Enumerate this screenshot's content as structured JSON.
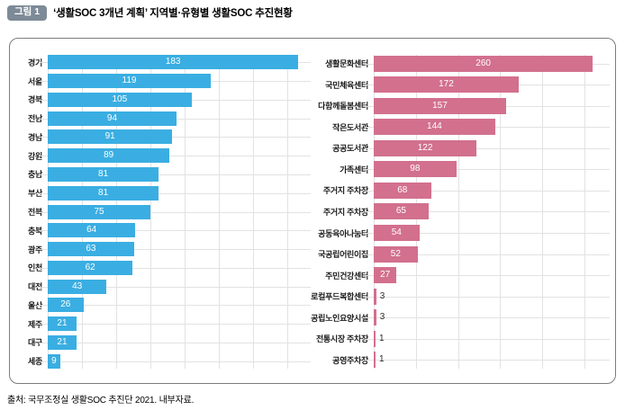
{
  "figure": {
    "badge": "그림 1",
    "title": "‘생활SOC 3개년 계획’ 지역별·유형별 생활SOC 추진현황",
    "source": "출처: 국무조정실 생활SOC 추진단 2021. 내부자료."
  },
  "colors": {
    "badge_bg": "#7d8a97",
    "left_bar": "#3aaee2",
    "right_bar": "#d2708e",
    "gridline": "#e2e2e2",
    "box_border": "#7d7d7d",
    "value_text_inside": "#ffffff",
    "value_text_outside": "#2a2a2a"
  },
  "chart_data": [
    {
      "type": "bar",
      "orientation": "horizontal",
      "name": "region-chart",
      "title": "",
      "xlabel": "",
      "ylabel": "",
      "legend": null,
      "grid": true,
      "categories": [
        "경기",
        "서울",
        "경북",
        "전남",
        "경남",
        "강원",
        "충남",
        "부산",
        "전북",
        "충북",
        "광주",
        "인천",
        "대전",
        "울산",
        "제주",
        "대구",
        "세종"
      ],
      "values": [
        183,
        119,
        105,
        94,
        91,
        89,
        81,
        81,
        75,
        64,
        63,
        62,
        43,
        26,
        21,
        21,
        9
      ],
      "xlim": [
        0,
        192
      ],
      "grid_step": 25,
      "bar_color": "#3aaee2",
      "label_width": 40
    },
    {
      "type": "bar",
      "orientation": "horizontal",
      "name": "facility-type-chart",
      "title": "",
      "xlabel": "",
      "ylabel": "",
      "legend": null,
      "grid": true,
      "categories": [
        "생활문화센터",
        "국민체육센터",
        "다함께돌봄센터",
        "작은도서관",
        "공공도서관",
        "가족센터",
        "주거지 주차장",
        "주거지 주차장",
        "공동육아나눔터",
        "국공립어린이집",
        "주민건강센터",
        "로컬푸드복합센터",
        "공립노인요양시설",
        "전통시장 주차장",
        "공영주차장"
      ],
      "values": [
        260,
        172,
        157,
        144,
        122,
        98,
        68,
        65,
        54,
        52,
        27,
        3,
        3,
        1,
        1
      ],
      "xlim": [
        0,
        280
      ],
      "grid_step": 50,
      "bar_color": "#d2708e",
      "label_width": 70
    }
  ]
}
